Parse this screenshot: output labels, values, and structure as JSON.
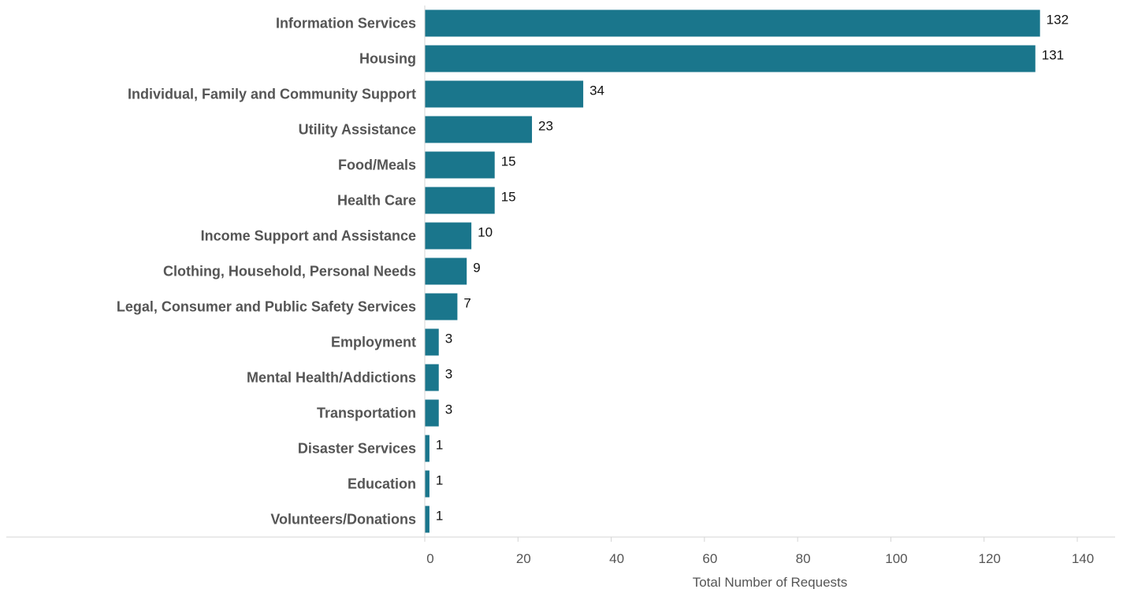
{
  "chart_data": {
    "type": "bar",
    "orientation": "horizontal",
    "categories": [
      "Information Services",
      "Housing",
      "Individual, Family and Community Support",
      "Utility Assistance",
      "Food/Meals",
      "Health Care",
      "Income Support and Assistance",
      "Clothing, Household, Personal Needs",
      "Legal, Consumer and Public Safety Services",
      "Employment",
      "Mental Health/Addictions",
      "Transportation",
      "Disaster Services",
      "Education",
      "Volunteers/Donations"
    ],
    "values": [
      132,
      131,
      34,
      23,
      15,
      15,
      10,
      9,
      7,
      3,
      3,
      3,
      1,
      1,
      1
    ],
    "value_labels": [
      "132",
      "131",
      "34",
      "23",
      "15",
      "15",
      "10",
      "9",
      "7",
      "3",
      "3",
      "3",
      "1",
      "1",
      "1"
    ],
    "xlabel": "Total Number of Requests",
    "ylabel": "",
    "xlim": [
      0,
      148
    ],
    "xticks": [
      0,
      20,
      40,
      60,
      80,
      100,
      120,
      140
    ],
    "xtick_labels": [
      "0",
      "20",
      "40",
      "60",
      "80",
      "100",
      "120",
      "140"
    ],
    "grid": false,
    "bar_color": "#1a768c",
    "axis_color": "#d4d4d4"
  }
}
